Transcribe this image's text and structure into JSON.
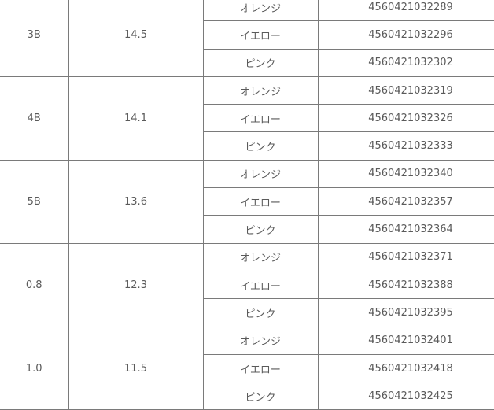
{
  "table": {
    "groups": [
      {
        "size": "3B",
        "value": "14.5",
        "rows": [
          {
            "color": "オレンジ",
            "jan": "4560421032289"
          },
          {
            "color": "イエロー",
            "jan": "4560421032296"
          },
          {
            "color": "ピンク",
            "jan": "4560421032302"
          }
        ]
      },
      {
        "size": "4B",
        "value": "14.1",
        "rows": [
          {
            "color": "オレンジ",
            "jan": "4560421032319"
          },
          {
            "color": "イエロー",
            "jan": "4560421032326"
          },
          {
            "color": "ピンク",
            "jan": "4560421032333"
          }
        ]
      },
      {
        "size": "5B",
        "value": "13.6",
        "rows": [
          {
            "color": "オレンジ",
            "jan": "4560421032340"
          },
          {
            "color": "イエロー",
            "jan": "4560421032357"
          },
          {
            "color": "ピンク",
            "jan": "4560421032364"
          }
        ]
      },
      {
        "size": "0.8",
        "value": "12.3",
        "rows": [
          {
            "color": "オレンジ",
            "jan": "4560421032371"
          },
          {
            "color": "イエロー",
            "jan": "4560421032388"
          },
          {
            "color": "ピンク",
            "jan": "4560421032395"
          }
        ]
      },
      {
        "size": "1.0",
        "value": "11.5",
        "rows": [
          {
            "color": "オレンジ",
            "jan": "4560421032401"
          },
          {
            "color": "イエロー",
            "jan": "4560421032418"
          },
          {
            "color": "ピンク",
            "jan": "4560421032425"
          }
        ]
      }
    ]
  }
}
